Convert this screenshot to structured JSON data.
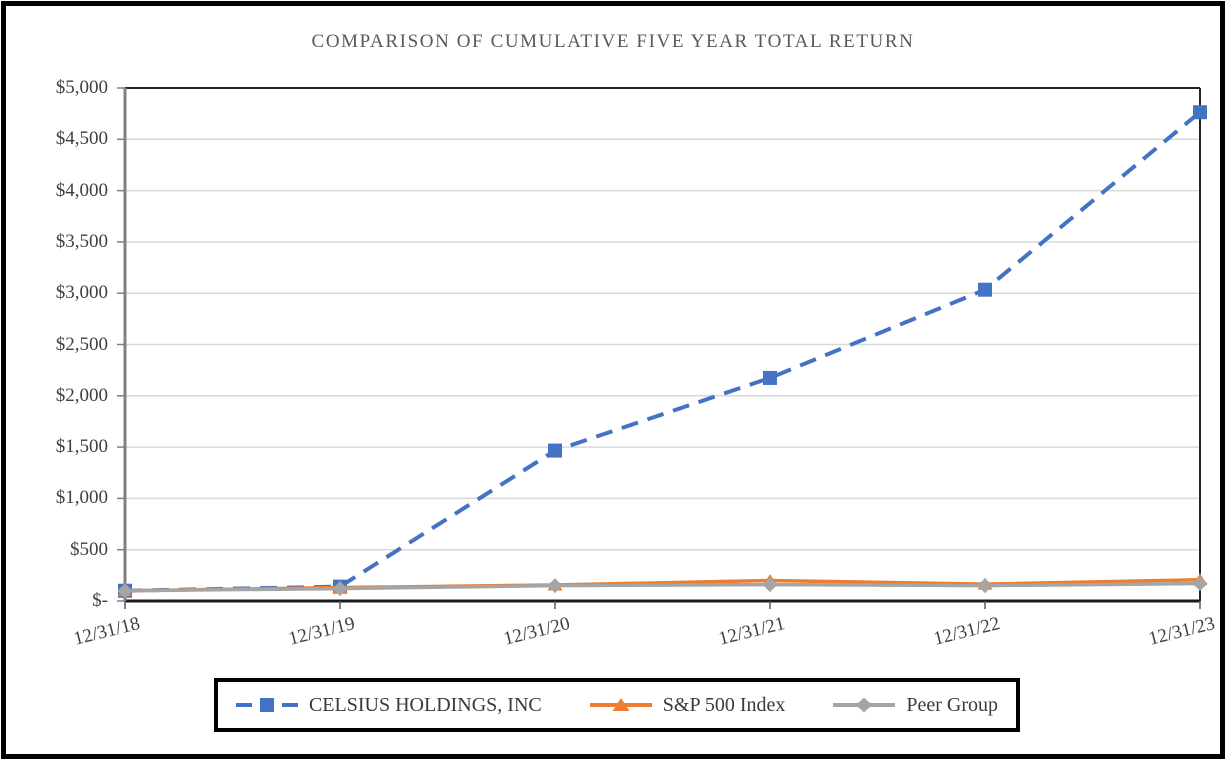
{
  "title": "COMPARISON OF CUMULATIVE FIVE YEAR TOTAL RETURN",
  "colors": {
    "celsius_blue": "#4472C4",
    "sp500_orange": "#ED7D31",
    "peer_gray": "#A5A5A5",
    "gridline": "#D9D9D9",
    "axis_dark": "#1a1a1a",
    "axis_gray": "#808080",
    "tick_text": "#404040",
    "title_text": "#595959"
  },
  "chart_data": {
    "type": "line",
    "title": "COMPARISON OF CUMULATIVE FIVE YEAR TOTAL RETURN",
    "x": [
      "12/31/18",
      "12/31/19",
      "12/31/20",
      "12/31/21",
      "12/31/22",
      "12/31/23"
    ],
    "series": [
      {
        "name": "CELSIUS HOLDINGS, INC",
        "values": [
          100,
          140,
          1466,
          2174,
          3034,
          4764
        ],
        "color": "#4472C4",
        "marker": "square",
        "line_style": "dashed"
      },
      {
        "name": "S&P 500 Index",
        "values": [
          100,
          131,
          156,
          200,
          164,
          207
        ],
        "color": "#ED7D31",
        "marker": "triangle",
        "line_style": "solid"
      },
      {
        "name": "Peer Group",
        "values": [
          100,
          121,
          150,
          160,
          150,
          170
        ],
        "color": "#A5A5A5",
        "marker": "diamond",
        "line_style": "solid"
      }
    ],
    "ylim": [
      0,
      5000
    ],
    "y_tick_step": 500,
    "y_tick_labels": [
      "$-",
      "$500",
      "$1,000",
      "$1,500",
      "$2,000",
      "$2,500",
      "$3,000",
      "$3,500",
      "$4,000",
      "$4,500",
      "$5,000"
    ],
    "grid": "horizontal-only",
    "legend_position": "bottom",
    "x_label_rotation_deg": -14
  }
}
